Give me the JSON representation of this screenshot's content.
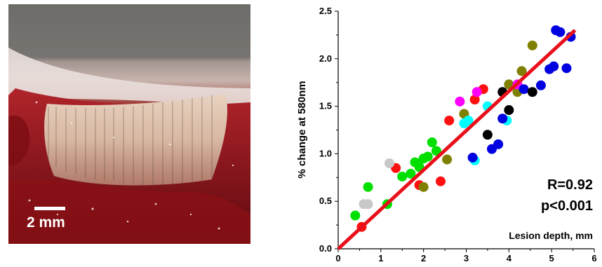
{
  "photo": {
    "scale_bar_label": "2 mm"
  },
  "chart_data": {
    "type": "scatter",
    "title": "",
    "xlabel": "Lesion depth, mm",
    "ylabel": "% change at 580nm",
    "xlim": [
      0,
      6
    ],
    "ylim": [
      0,
      2.5
    ],
    "x_ticks": [
      "0",
      "1",
      "2",
      "3",
      "4",
      "5",
      "6"
    ],
    "y_ticks": [
      "0.0",
      "0.5",
      "1.0",
      "1.5",
      "2.0",
      "2.5"
    ],
    "grid": false,
    "fit_line": {
      "x": [
        0,
        5.55
      ],
      "y": [
        0,
        2.3
      ],
      "color": "#e8101a"
    },
    "annotations": {
      "r": "R=0.92",
      "p": "p<0.001"
    },
    "series": [
      {
        "color": "#00e000",
        "points": [
          [
            0.4,
            0.35
          ],
          [
            0.7,
            0.65
          ],
          [
            1.15,
            0.47
          ],
          [
            1.5,
            0.76
          ],
          [
            1.7,
            0.79
          ],
          [
            1.8,
            0.91
          ],
          [
            1.9,
            0.86
          ],
          [
            2.0,
            0.95
          ],
          [
            2.1,
            0.97
          ],
          [
            2.2,
            1.12
          ],
          [
            2.3,
            1.03
          ]
        ]
      },
      {
        "color": "#ff1010",
        "points": [
          [
            0.55,
            0.23
          ],
          [
            1.35,
            0.85
          ],
          [
            1.9,
            0.67
          ],
          [
            2.4,
            0.71
          ],
          [
            2.6,
            1.35
          ],
          [
            3.2,
            1.57
          ],
          [
            3.4,
            1.68
          ]
        ]
      },
      {
        "color": "#c8c8c8",
        "points": [
          [
            0.6,
            0.47
          ],
          [
            0.7,
            0.47
          ],
          [
            1.2,
            0.9
          ]
        ]
      },
      {
        "color": "#808000",
        "points": [
          [
            2.0,
            0.65
          ],
          [
            2.55,
            0.94
          ],
          [
            2.95,
            1.42
          ],
          [
            4.0,
            1.73
          ],
          [
            4.2,
            1.65
          ],
          [
            4.3,
            1.87
          ],
          [
            4.55,
            2.14
          ]
        ]
      },
      {
        "color": "#00ffff",
        "points": [
          [
            2.95,
            1.32
          ],
          [
            3.05,
            1.35
          ],
          [
            3.2,
            0.93
          ],
          [
            3.5,
            1.5
          ],
          [
            3.95,
            1.35
          ]
        ]
      },
      {
        "color": "#ff00ff",
        "points": [
          [
            2.85,
            1.55
          ],
          [
            3.25,
            1.65
          ],
          [
            4.2,
            1.73
          ]
        ]
      },
      {
        "color": "#0000e0",
        "points": [
          [
            3.15,
            0.96
          ],
          [
            3.6,
            1.05
          ],
          [
            3.75,
            1.1
          ],
          [
            3.85,
            1.37
          ],
          [
            4.35,
            1.68
          ],
          [
            4.75,
            1.72
          ],
          [
            4.95,
            1.89
          ],
          [
            5.05,
            1.92
          ],
          [
            5.1,
            2.3
          ],
          [
            5.2,
            2.28
          ],
          [
            5.35,
            1.9
          ],
          [
            5.45,
            2.23
          ]
        ]
      },
      {
        "color": "#000000",
        "points": [
          [
            3.5,
            1.2
          ],
          [
            3.85,
            1.65
          ],
          [
            4.0,
            1.46
          ],
          [
            4.55,
            1.65
          ]
        ]
      }
    ]
  }
}
